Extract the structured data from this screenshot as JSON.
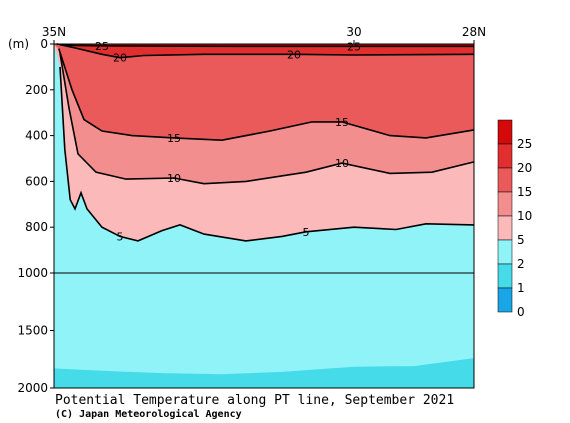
{
  "chart_data": {
    "type": "heatmap",
    "title": "Potential Temperature along PT line, September 2021",
    "credit": "(C) Japan Meteorological Agency",
    "x_axis": {
      "tick_labels": [
        "35N",
        "30",
        "28N"
      ],
      "tick_values": [
        35,
        30,
        28
      ],
      "range": [
        35,
        28
      ]
    },
    "y_axis": {
      "unit_label": "(m)",
      "tick_labels": [
        "0",
        "200",
        "400",
        "600",
        "800",
        "1000",
        "1500",
        "2000"
      ],
      "tick_values": [
        0,
        200,
        400,
        600,
        800,
        1000,
        1500,
        2000
      ],
      "range": [
        0,
        2000
      ],
      "scale_break_at": 1000
    },
    "colorbar": {
      "labels": [
        "0",
        "1",
        "2",
        "5",
        "10",
        "15",
        "20",
        "25"
      ],
      "levels": [
        0,
        1,
        2,
        5,
        10,
        15,
        20,
        25
      ],
      "colors": [
        "#1aa6e6",
        "#46dbe9",
        "#8ff3f8",
        "#fbb9b9",
        "#f38e8e",
        "#ea5a5a",
        "#e12f2f",
        "#d40a0a"
      ]
    },
    "contours": [
      {
        "level": 25,
        "label": "25",
        "points": [
          [
            34.96,
            0
          ],
          [
            34.7,
            6
          ],
          [
            34.2,
            8
          ],
          [
            33.5,
            9
          ],
          [
            32.0,
            10
          ],
          [
            30.0,
            10
          ],
          [
            28.0,
            10
          ]
        ]
      },
      {
        "level": 20,
        "label": "20",
        "points": [
          [
            34.95,
            0
          ],
          [
            34.6,
            20
          ],
          [
            34.2,
            45
          ],
          [
            33.9,
            60
          ],
          [
            33.5,
            50
          ],
          [
            32.5,
            45
          ],
          [
            31.0,
            45
          ],
          [
            30.0,
            48
          ],
          [
            28.0,
            45
          ]
        ]
      },
      {
        "level": 15,
        "label": "15",
        "points": [
          [
            34.92,
            20
          ],
          [
            34.7,
            200
          ],
          [
            34.5,
            330
          ],
          [
            34.2,
            380
          ],
          [
            33.7,
            400
          ],
          [
            33.0,
            410
          ],
          [
            32.2,
            420
          ],
          [
            31.4,
            380
          ],
          [
            30.7,
            340
          ],
          [
            30.2,
            340
          ],
          [
            29.4,
            400
          ],
          [
            28.8,
            410
          ],
          [
            28.0,
            375
          ]
        ]
      },
      {
        "level": 10,
        "label": "10",
        "points": [
          [
            34.9,
            40
          ],
          [
            34.75,
            280
          ],
          [
            34.6,
            480
          ],
          [
            34.3,
            560
          ],
          [
            33.8,
            590
          ],
          [
            33.0,
            585
          ],
          [
            32.5,
            610
          ],
          [
            31.8,
            600
          ],
          [
            30.8,
            560
          ],
          [
            30.2,
            520
          ],
          [
            29.4,
            565
          ],
          [
            28.7,
            560
          ],
          [
            28.0,
            515
          ]
        ]
      },
      {
        "level": 5,
        "label": "5",
        "points": [
          [
            34.9,
            100
          ],
          [
            34.82,
            460
          ],
          [
            34.73,
            680
          ],
          [
            34.65,
            720
          ],
          [
            34.55,
            650
          ],
          [
            34.45,
            720
          ],
          [
            34.2,
            800
          ],
          [
            33.9,
            840
          ],
          [
            33.6,
            860
          ],
          [
            33.2,
            815
          ],
          [
            32.9,
            790
          ],
          [
            32.5,
            830
          ],
          [
            31.8,
            860
          ],
          [
            31.2,
            840
          ],
          [
            30.8,
            820
          ],
          [
            30.0,
            800
          ],
          [
            29.3,
            810
          ],
          [
            28.8,
            785
          ],
          [
            28.0,
            790
          ]
        ]
      }
    ],
    "fill_bands": [
      {
        "min": 2,
        "max": 5,
        "color": "#8ff3f8"
      },
      {
        "min": 5,
        "max": 10,
        "color": "#fbb9b9"
      },
      {
        "min": 10,
        "max": 15,
        "color": "#f38e8e"
      },
      {
        "min": 15,
        "max": 20,
        "color": "#ea5a5a"
      },
      {
        "min": 20,
        "max": 25,
        "color": "#e12f2f"
      },
      {
        "min": 25,
        "max": 30,
        "color": "#d40a0a"
      }
    ],
    "deep_band": {
      "min": 1,
      "max": 2,
      "color": "#46dbe9",
      "top_points": [
        [
          35.0,
          1830
        ],
        [
          34.6,
          1840
        ],
        [
          34.0,
          1855
        ],
        [
          33.2,
          1870
        ],
        [
          32.2,
          1880
        ],
        [
          31.2,
          1860
        ],
        [
          30.0,
          1815
        ],
        [
          29.0,
          1810
        ],
        [
          28.0,
          1740
        ]
      ]
    },
    "grid": false
  }
}
